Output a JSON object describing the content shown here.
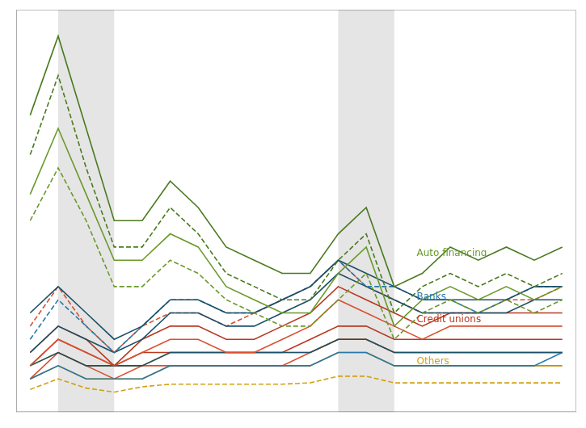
{
  "chart_data": {
    "type": "line",
    "x": [
      0,
      1,
      2,
      3,
      4,
      5,
      6,
      7,
      8,
      9,
      10,
      11,
      12,
      13,
      14,
      15,
      16,
      17,
      18,
      19
    ],
    "xlim": [
      -0.5,
      19.5
    ],
    "ylim": [
      -0.5,
      30
    ],
    "grid": false,
    "legend": "none",
    "tick_labels": false,
    "shaded": [
      {
        "from": 1,
        "to": 3,
        "color": "#cccccc"
      },
      {
        "from": 11,
        "to": 13,
        "color": "#cccccc"
      }
    ],
    "series": [
      {
        "color": "#4a7a1e",
        "line_style": "solid",
        "values": [
          22,
          28,
          21,
          14,
          14,
          17,
          15,
          12,
          11,
          10,
          10,
          13,
          15,
          9,
          10,
          12,
          11,
          12,
          11,
          12
        ]
      },
      {
        "color": "#4a7a1e",
        "line_style": "dashed",
        "values": [
          19,
          25,
          18,
          12,
          12,
          15,
          13,
          10,
          9,
          8,
          8,
          11,
          13,
          7,
          9,
          10,
          9,
          10,
          9,
          10
        ]
      },
      {
        "color": "#6a9a2a",
        "line_style": "solid",
        "values": [
          16,
          21,
          16,
          11,
          11,
          13,
          12,
          9,
          8,
          7,
          7,
          10,
          12,
          6,
          8,
          9,
          8,
          9,
          8,
          9
        ]
      },
      {
        "color": "#6a9a2a",
        "line_style": "dashed",
        "values": [
          14,
          18,
          14,
          9,
          9,
          11,
          10,
          8,
          7,
          6,
          6,
          8,
          10,
          5,
          7,
          8,
          7,
          8,
          7,
          8
        ]
      },
      {
        "color": "#1a5068",
        "line_style": "solid",
        "values": [
          7,
          9,
          7,
          5,
          6,
          8,
          8,
          7,
          7,
          8,
          9,
          11,
          10,
          9,
          8,
          8,
          8,
          8,
          9,
          9
        ]
      },
      {
        "color": "#2878a8",
        "line_style": "dashed",
        "values": [
          5,
          8,
          6,
          4,
          6,
          8,
          8,
          7,
          7,
          8,
          9,
          11,
          9,
          9,
          8,
          8,
          7,
          8,
          9,
          9
        ]
      },
      {
        "color": "#1a5068",
        "line_style": "solid",
        "values": [
          4,
          6,
          5,
          4,
          5,
          7,
          7,
          6,
          6,
          7,
          8,
          10,
          9,
          8,
          7,
          7,
          7,
          7,
          8,
          8
        ]
      },
      {
        "color": "#d85030",
        "line_style": "dashed",
        "values": [
          6,
          9,
          6,
          4,
          6,
          7,
          7,
          6,
          7,
          8,
          9,
          11,
          9,
          8,
          7,
          7,
          7,
          8,
          8,
          9
        ]
      },
      {
        "color": "#b83820",
        "line_style": "solid",
        "values": [
          4,
          6,
          5,
          3,
          5,
          6,
          6,
          5,
          5,
          6,
          7,
          9,
          8,
          7,
          6,
          7,
          7,
          7,
          7,
          7
        ]
      },
      {
        "color": "#d85030",
        "line_style": "solid",
        "values": [
          3,
          5,
          4,
          3,
          4,
          5,
          5,
          4,
          4,
          5,
          6,
          8,
          7,
          6,
          5,
          6,
          6,
          6,
          6,
          6
        ]
      },
      {
        "color": "#1a5068",
        "line_style": "solid",
        "values": [
          3,
          4,
          3,
          3,
          3,
          4,
          4,
          4,
          4,
          4,
          4,
          5,
          5,
          4,
          4,
          4,
          4,
          4,
          4,
          4
        ]
      },
      {
        "color": "#2878a8",
        "line_style": "solid",
        "values": [
          2,
          3,
          2,
          2,
          2,
          3,
          3,
          3,
          3,
          3,
          3,
          4,
          4,
          3,
          3,
          3,
          3,
          3,
          3,
          4
        ]
      },
      {
        "color": "#b83820",
        "line_style": "solid",
        "values": [
          3,
          5,
          4,
          3,
          4,
          4,
          4,
          4,
          4,
          4,
          5,
          6,
          6,
          5,
          5,
          5,
          5,
          5,
          5,
          5
        ]
      },
      {
        "color": "#d85030",
        "line_style": "solid",
        "values": [
          2,
          4,
          3,
          2,
          3,
          3,
          3,
          3,
          3,
          3,
          4,
          5,
          5,
          4,
          4,
          4,
          4,
          4,
          4,
          4
        ]
      },
      {
        "color": "#d4a010",
        "line_style": "solid",
        "values": [
          3,
          4,
          3,
          3,
          3,
          4,
          4,
          4,
          4,
          4,
          4,
          5,
          5,
          4,
          4,
          4,
          4,
          4,
          4,
          4
        ]
      },
      {
        "color": "#c09000",
        "line_style": "solid",
        "values": [
          2,
          3,
          2,
          2,
          2,
          3,
          3,
          3,
          3,
          3,
          3,
          4,
          4,
          3,
          3,
          3,
          3,
          3,
          3,
          3
        ]
      },
      {
        "color": "#d4a010",
        "line_style": "dashed",
        "values": [
          1.2,
          2.0,
          1.3,
          1.0,
          1.4,
          1.6,
          1.6,
          1.6,
          1.6,
          1.6,
          1.7,
          2.2,
          2.2,
          1.7,
          1.7,
          1.7,
          1.7,
          1.7,
          1.7,
          1.7
        ]
      }
    ],
    "annotations": [
      {
        "text": "Auto financing",
        "x": 13.8,
        "y": 11.5,
        "color": "#6a9a2a"
      },
      {
        "text": "Banks",
        "x": 13.8,
        "y": 8.2,
        "color": "#2878a8"
      },
      {
        "text": "Credit unions",
        "x": 13.8,
        "y": 6.5,
        "color": "#b83820"
      },
      {
        "text": "Others",
        "x": 13.8,
        "y": 3.3,
        "color": "#d4a010"
      }
    ]
  }
}
